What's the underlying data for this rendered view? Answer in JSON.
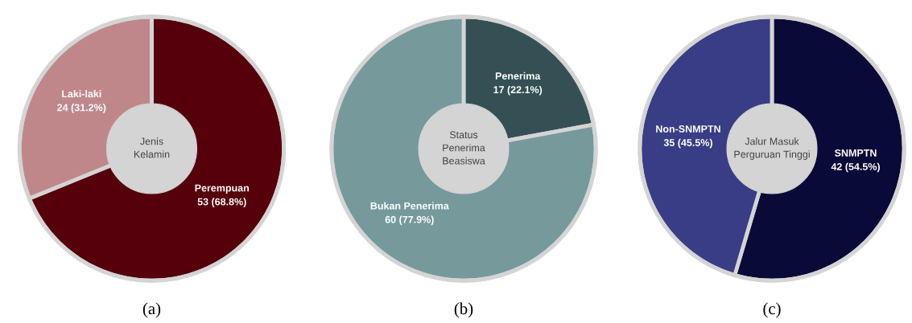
{
  "chart_data": [
    {
      "type": "donut",
      "title": "Jenis\nKelamin",
      "categories": [
        "Perempuan",
        "Laki-laki"
      ],
      "values": [
        53,
        24
      ],
      "value_labels": [
        "53 (68.8%)",
        "24 (31.2%)"
      ],
      "colors": [
        "#55000b",
        "#c0878b"
      ],
      "annotations": [
        "(a)"
      ]
    },
    {
      "type": "donut",
      "title": "Status\nPenerima\nBeasiswa",
      "categories": [
        "Penerima",
        "Bukan Penerima"
      ],
      "values": [
        17,
        60
      ],
      "value_labels": [
        "17 (22.1%)",
        "60 (77.9%)"
      ],
      "colors": [
        "#345054",
        "#76999c"
      ],
      "annotations": [
        "(b)"
      ]
    },
    {
      "type": "donut",
      "title": "Jalur Masuk\nPerguruan Tinggi",
      "categories": [
        "SNMPTN",
        "Non-SNMPTN"
      ],
      "values": [
        42,
        35
      ],
      "value_labels": [
        "42 (54.5%)",
        "35 (45.5%)"
      ],
      "colors": [
        "#0a0a38",
        "#383d85"
      ],
      "annotations": [
        "(c)"
      ]
    }
  ]
}
